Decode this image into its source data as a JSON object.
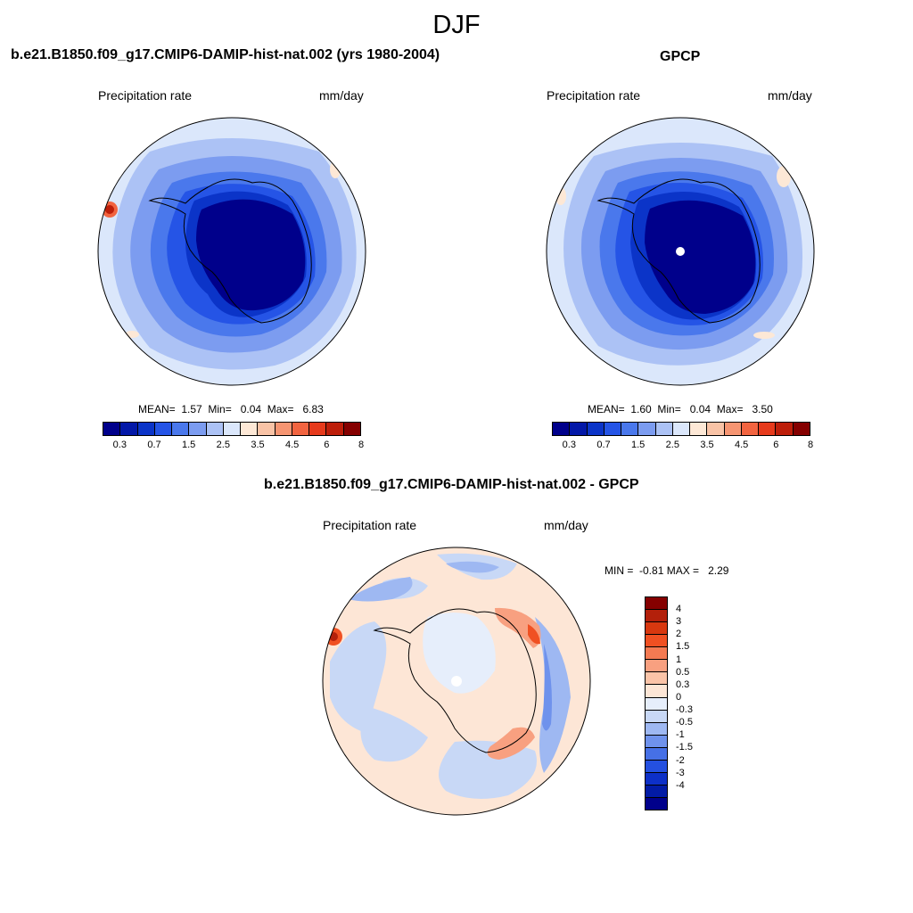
{
  "figure": {
    "season": "DJF"
  },
  "panels": {
    "model": {
      "title": "b.e21.B1850.f09_g17.CMIP6-DAMIP-hist-nat.002 (yrs 1980-2004)",
      "variable": "Precipitation rate",
      "units": "mm/day",
      "stats": {
        "mean_label": "MEAN=",
        "mean": "1.57",
        "min_label": "Min=",
        "min": "0.04",
        "max_label": "Max=",
        "max": "6.83"
      }
    },
    "obs": {
      "title": "GPCP",
      "variable": "Precipitation rate",
      "units": "mm/day",
      "stats": {
        "mean_label": "MEAN=",
        "mean": "1.60",
        "min_label": "Min=",
        "min": "0.04",
        "max_label": "Max=",
        "max": "3.50"
      }
    },
    "diff": {
      "title": "b.e21.B1850.f09_g17.CMIP6-DAMIP-hist-nat.002 - GPCP",
      "variable": "Precipitation rate",
      "units": "mm/day",
      "stats": {
        "min_label": "MIN =",
        "min": "-0.81",
        "max_label": "MAX =",
        "max": "2.29"
      }
    }
  },
  "colorbars": {
    "abs": {
      "colors": [
        "#00008b",
        "#0318a8",
        "#0b34c8",
        "#2554e6",
        "#4a78ec",
        "#7c9cf0",
        "#acc2f5",
        "#dbe7fb",
        "#fde8d6",
        "#f9c3a6",
        "#f69572",
        "#f26440",
        "#e63a1c",
        "#bd1e0a",
        "#850000"
      ],
      "tick_labels": [
        "0.3",
        "0.7",
        "1.5",
        "2.5",
        "3.5",
        "4.5",
        "6",
        "8"
      ]
    },
    "diff": {
      "colors": [
        "#850000",
        "#b3200b",
        "#d8380f",
        "#f05022",
        "#f47a52",
        "#f8a080",
        "#fbc4a8",
        "#fde6d6",
        "#e6eefb",
        "#c8d8f6",
        "#9eb8f2",
        "#6f92ec",
        "#4670e6",
        "#2450e0",
        "#0d30c8",
        "#021ba6",
        "#00008b"
      ],
      "tick_labels": [
        "4",
        "3",
        "2",
        "1.5",
        "1",
        "0.5",
        "0.3",
        "0",
        "-0.3",
        "-0.5",
        "-1",
        "-1.5",
        "-2",
        "-3",
        "-4"
      ]
    }
  }
}
